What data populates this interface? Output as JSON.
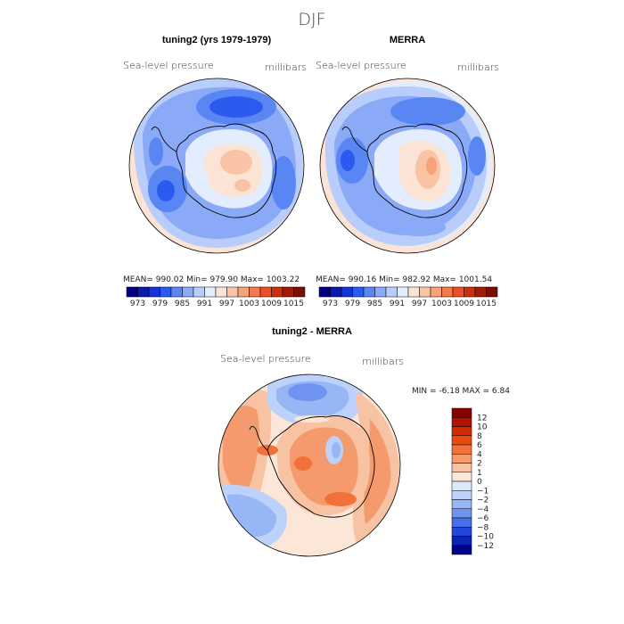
{
  "figure": {
    "title": "DJF",
    "type": "polar-map"
  },
  "panels": [
    {
      "title": "tuning2 (yrs 1979-1979)",
      "variable": "Sea-level pressure",
      "units": "millibars",
      "stats": "MEAN= 990.02   Min= 979.90   Max= 1003.22"
    },
    {
      "title": "MERRA",
      "variable": "Sea-level pressure",
      "units": "millibars",
      "stats": "MEAN= 990.16   Min= 982.92   Max= 1001.54"
    },
    {
      "title": "tuning2 - MERRA",
      "variable": "Sea-level pressure",
      "units": "millibars",
      "stats": "MIN =   -6.18  MAX =    6.84"
    }
  ],
  "chart_data": [
    {
      "type": "heatmap",
      "title": "tuning2 (yrs 1979-1979)",
      "variable": "Sea-level pressure",
      "units": "millibars",
      "mean": 990.02,
      "min": 979.9,
      "max": 1003.22,
      "colorbar_ticks": [
        "973",
        "979",
        "985",
        "991",
        "997",
        "1003",
        "1009",
        "1015"
      ]
    },
    {
      "type": "heatmap",
      "title": "MERRA",
      "variable": "Sea-level pressure",
      "units": "millibars",
      "mean": 990.16,
      "min": 982.92,
      "max": 1001.54,
      "colorbar_ticks": [
        "973",
        "979",
        "985",
        "991",
        "997",
        "1003",
        "1009",
        "1015"
      ]
    },
    {
      "type": "heatmap",
      "title": "tuning2 - MERRA",
      "variable": "Sea-level pressure",
      "units": "millibars",
      "min": -6.18,
      "max": 6.84,
      "colorbar_ticks": [
        "12",
        "10",
        "8",
        "6",
        "4",
        "2",
        "1",
        "0",
        "−1",
        "−2",
        "−4",
        "−6",
        "−8",
        "−10",
        "−12"
      ]
    }
  ],
  "colors": {
    "abs_scale": [
      "#00007f",
      "#0a1ab0",
      "#1533d6",
      "#2b5bee",
      "#5a86f3",
      "#8aaaf7",
      "#b9cdfb",
      "#e3edfd",
      "#fbe4d6",
      "#f9c4a6",
      "#f6a27b",
      "#f27a4f",
      "#ea4f25",
      "#c8300f",
      "#a01c05",
      "#7a0e00"
    ],
    "diff_scale": [
      "#8b0000",
      "#b01400",
      "#d42a00",
      "#ec4b10",
      "#f2703a",
      "#f59a6c",
      "#f8c3a2",
      "#fce6d8",
      "#dde9fb",
      "#bcd2fa",
      "#97b6f6",
      "#6f93f0",
      "#4670ea",
      "#2346dc",
      "#0b23b5",
      "#00008b"
    ]
  }
}
